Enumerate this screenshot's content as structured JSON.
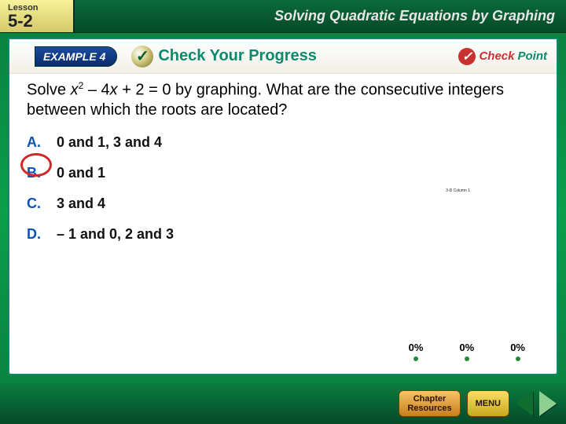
{
  "topbar": {
    "lesson_label": "Lesson",
    "lesson_number": "5-2",
    "title": "Solving Quadratic Equations by Graphing"
  },
  "example": {
    "tab_label": "EXAMPLE 4",
    "cyp_label": "Check Your Progress",
    "checkpoint_check": "Check",
    "checkpoint_point": "Point"
  },
  "question": {
    "prefix": "Solve ",
    "var": "x",
    "exp": "2",
    "rest1": " – 4",
    "var2": "x",
    "rest2": " + 2 = 0 by graphing. What are the consecutive integers between which the roots are located?"
  },
  "answers": [
    {
      "label": "A.",
      "text": "0 and 1, 3 and 4",
      "circled": true
    },
    {
      "label": "B.",
      "text": "0 and 1",
      "circled": false
    },
    {
      "label": "C.",
      "text": "3 and 4",
      "circled": false
    },
    {
      "label": "D.",
      "text": "– 1 and 0, 2 and 3",
      "circled": false
    }
  ],
  "tiny_chart_label": "3-D Column 1",
  "percents": [
    "0%",
    "0%",
    "0%"
  ],
  "footer": {
    "chapter_btn": "Chapter\nResources",
    "menu_btn": "MENU"
  },
  "colors": {
    "accent_green": "#0d8a6b",
    "accent_blue": "#0d53b3",
    "circle_red": "#d02828",
    "header_blue": "#0a2c6c",
    "checkpoint_red": "#c93030"
  }
}
